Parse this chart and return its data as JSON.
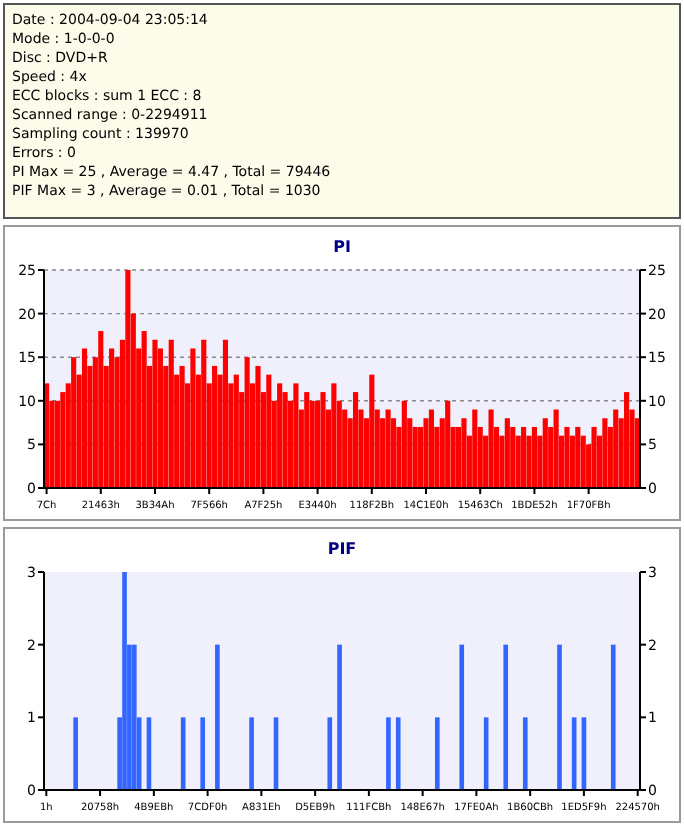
{
  "chart_data": [
    {
      "type": "bar",
      "title": "PI",
      "annotations": [
        "Date : 2004-09-04 23:05:14",
        "Mode : 1-0-0-0",
        "Disc : DVD+R",
        "Speed : 4x",
        "ECC blocks : sum 1 ECC : 8",
        "Scanned range : 0-2294911",
        "Sampling count : 139970",
        "Errors : 0",
        "PI Max = 25 , Average = 4.47 , Total = 79446",
        "PIF Max = 3 , Average = 0.01 , Total = 1030"
      ],
      "categories": [
        "7Ch",
        null,
        null,
        null,
        null,
        null,
        null,
        null,
        null,
        null,
        "21463h",
        null,
        null,
        null,
        null,
        null,
        null,
        null,
        null,
        null,
        "3B34Ah",
        null,
        null,
        null,
        null,
        null,
        null,
        null,
        null,
        null,
        "7F566h",
        null,
        null,
        null,
        null,
        null,
        null,
        null,
        null,
        null,
        "A7F25h",
        null,
        null,
        null,
        null,
        null,
        null,
        null,
        null,
        null,
        "E3440h",
        null,
        null,
        null,
        null,
        null,
        null,
        null,
        null,
        null,
        "118F2Bh",
        null,
        null,
        null,
        null,
        null,
        null,
        null,
        null,
        null,
        "14C1E0h",
        null,
        null,
        null,
        null,
        null,
        null,
        null,
        null,
        null,
        "15463Ch",
        null,
        null,
        null,
        null,
        null,
        null,
        null,
        null,
        null,
        "1BDE52h",
        null,
        null,
        null,
        null,
        null,
        null,
        null,
        null,
        null,
        "1F70FBh",
        null,
        null,
        null,
        null,
        null,
        null,
        null,
        null,
        null
      ],
      "series": [
        {
          "color": "#ff0000",
          "values": [
            12,
            10,
            10,
            11,
            12,
            15,
            13,
            16,
            14,
            15,
            18,
            14,
            16,
            15,
            17,
            25,
            20,
            16,
            18,
            14,
            17,
            16,
            14,
            17,
            13,
            14,
            12,
            16,
            13,
            17,
            12,
            14,
            13,
            17,
            12,
            13,
            11,
            15,
            12,
            14,
            11,
            13,
            10,
            12,
            11,
            10,
            12,
            9,
            11,
            10,
            10,
            11,
            9,
            12,
            10,
            9,
            8,
            11,
            9,
            8,
            13,
            9,
            8,
            9,
            8,
            7,
            10,
            8,
            7,
            7,
            8,
            9,
            7,
            8,
            10,
            7,
            7,
            8,
            6,
            9,
            7,
            6,
            9,
            7,
            6,
            8,
            7,
            6,
            7,
            6,
            7,
            6,
            8,
            7,
            9,
            6,
            7,
            6,
            7,
            6,
            5,
            7,
            6,
            8,
            7,
            9,
            8,
            11,
            9,
            8
          ]
        }
      ],
      "ylim": [
        0,
        25
      ],
      "yticks": [
        0,
        5,
        10,
        15,
        20,
        25
      ],
      "y2lim": [
        0,
        25
      ],
      "y2ticks": [
        0,
        5,
        10,
        15,
        20,
        25
      ],
      "grid": "y"
    },
    {
      "type": "bar",
      "title": "PIF",
      "categories": [
        "1h",
        null,
        null,
        null,
        null,
        null,
        null,
        null,
        null,
        null,
        null,
        "20758h",
        null,
        null,
        null,
        null,
        null,
        null,
        null,
        null,
        null,
        null,
        "4B9EBh",
        null,
        null,
        null,
        null,
        null,
        null,
        null,
        null,
        null,
        null,
        "7CDF0h",
        null,
        null,
        null,
        null,
        null,
        null,
        null,
        null,
        null,
        null,
        "A831Eh",
        null,
        null,
        null,
        null,
        null,
        null,
        null,
        null,
        null,
        null,
        "D5EB9h",
        null,
        null,
        null,
        null,
        null,
        null,
        null,
        null,
        null,
        null,
        "111FCBh",
        null,
        null,
        null,
        null,
        null,
        null,
        null,
        null,
        null,
        null,
        "148E67h",
        null,
        null,
        null,
        null,
        null,
        null,
        null,
        null,
        null,
        null,
        "17FE0Ah",
        null,
        null,
        null,
        null,
        null,
        null,
        null,
        null,
        null,
        null,
        "1B60CBh",
        null,
        null,
        null,
        null,
        null,
        null,
        null,
        null,
        null,
        null,
        "1ED5F9h",
        null,
        null,
        null,
        null,
        null,
        null,
        null,
        null,
        null,
        null,
        "224570h"
      ],
      "series": [
        {
          "color": "#3366ff",
          "values": [
            0,
            0,
            0,
            0,
            0,
            0,
            1,
            0,
            0,
            0,
            0,
            0,
            0,
            0,
            0,
            1,
            3,
            2,
            2,
            1,
            0,
            1,
            0,
            0,
            0,
            0,
            0,
            0,
            1,
            0,
            0,
            0,
            1,
            0,
            0,
            2,
            0,
            0,
            0,
            0,
            0,
            0,
            1,
            0,
            0,
            0,
            0,
            1,
            0,
            0,
            0,
            0,
            0,
            0,
            0,
            0,
            0,
            0,
            1,
            0,
            2,
            0,
            0,
            0,
            0,
            0,
            0,
            0,
            0,
            0,
            1,
            0,
            1,
            0,
            0,
            0,
            0,
            0,
            0,
            0,
            1,
            0,
            0,
            0,
            0,
            2,
            0,
            0,
            0,
            0,
            1,
            0,
            0,
            0,
            2,
            0,
            0,
            0,
            1,
            0,
            0,
            0,
            0,
            0,
            0,
            2,
            0,
            0,
            1,
            0,
            1,
            0,
            0,
            0,
            0,
            0,
            2,
            0,
            0,
            0,
            0,
            0
          ]
        }
      ],
      "ylim": [
        0,
        3
      ],
      "yticks": [
        0,
        1,
        2,
        3
      ],
      "y2lim": [
        0,
        3
      ],
      "y2ticks": [
        0,
        1,
        2,
        3
      ],
      "grid": false
    }
  ]
}
